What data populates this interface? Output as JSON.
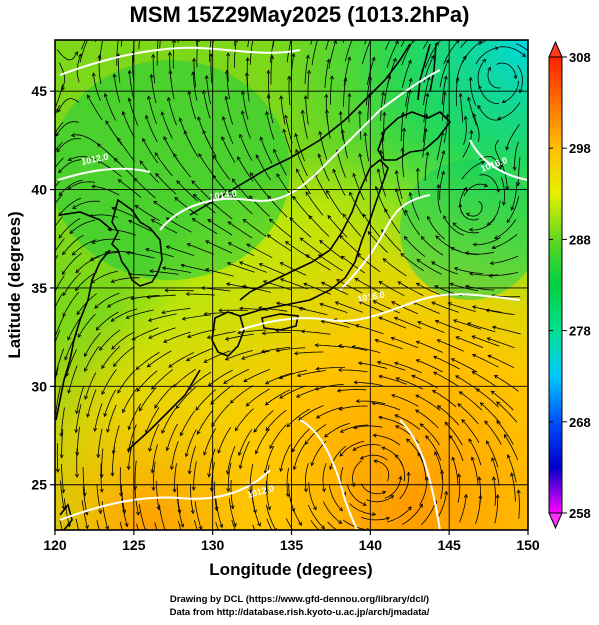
{
  "title": "MSM 15Z29May2025 (1013.2hPa)",
  "map": {
    "xlabel": "Longitude (degrees)",
    "ylabel": "Latitude  (degrees)",
    "lon_range": [
      120,
      150
    ],
    "lat_range": [
      22.7,
      47.6
    ],
    "lon_ticks": [
      120,
      125,
      130,
      135,
      140,
      145,
      150
    ],
    "lon_tick_labels": [
      "120",
      "125",
      "130",
      "135",
      "140",
      "145",
      "150"
    ],
    "lat_ticks": [
      25,
      30,
      35,
      40,
      45
    ],
    "lat_tick_labels": [
      "25",
      "30",
      "35",
      "40",
      "45"
    ],
    "grid": true
  },
  "colorbar": {
    "min": 258,
    "max": 308,
    "tick_values": [
      258,
      268,
      278,
      288,
      298,
      308
    ],
    "tick_labels": [
      "258",
      "268",
      "278",
      "288",
      "298",
      "308"
    ],
    "colors": [
      "#ff00ff",
      "#0000c8",
      "#0050ff",
      "#00c8ff",
      "#00e090",
      "#00d040",
      "#60d820",
      "#e6f000",
      "#ffc000",
      "#ff7000",
      "#ff2000"
    ]
  },
  "isobars": [
    {
      "label": "1012.0"
    },
    {
      "label": "1014.0"
    },
    {
      "label": "1016.0"
    },
    {
      "label": "1016.0"
    },
    {
      "label": "1012.0"
    }
  ],
  "credits": {
    "line1": "Drawing by DCL (https://www.gfd-dennou.org/library/dcl/)",
    "line2": "Data from http://database.rish.kyoto-u.ac.jp/arch/jmadata/"
  }
}
